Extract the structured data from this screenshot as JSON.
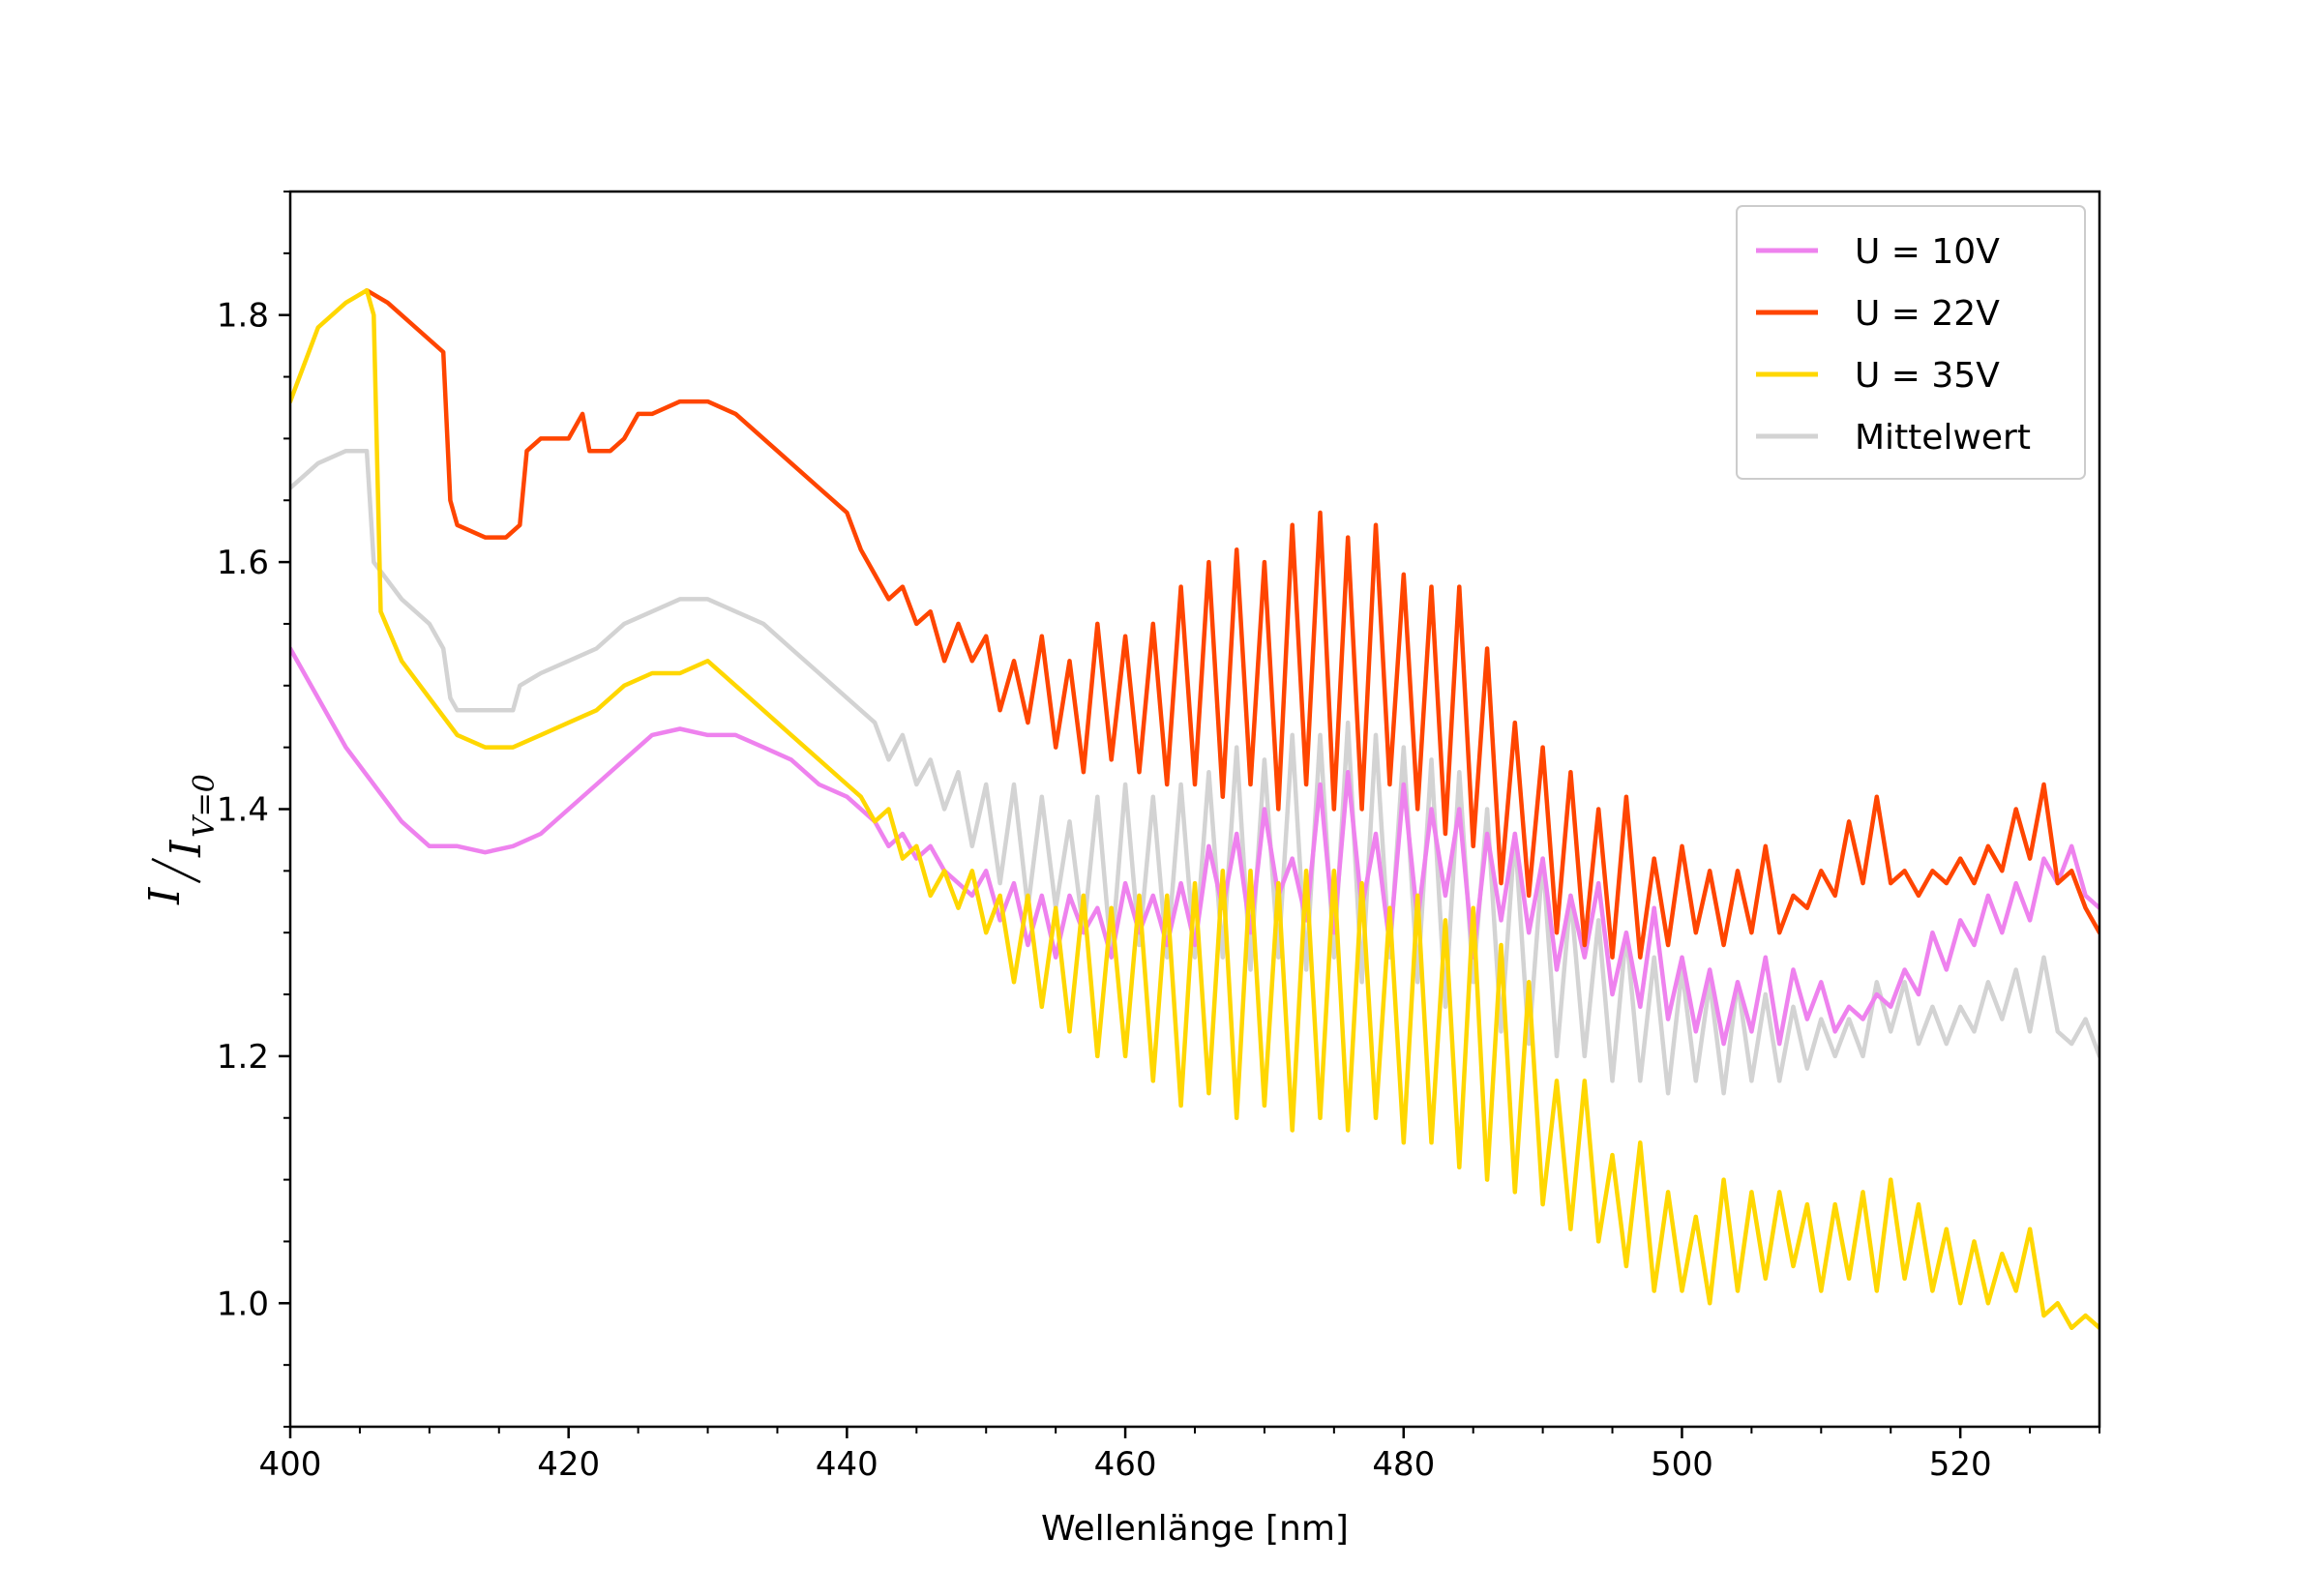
{
  "chart_data": {
    "type": "line",
    "xlabel": "Wellenlänge [nm]",
    "ylabel": {
      "numerator": "I",
      "denominator_base": "I",
      "denominator_sub": "V=0"
    },
    "xlim": [
      400,
      530
    ],
    "ylim": [
      0.9,
      1.9
    ],
    "xticks": [
      400,
      420,
      440,
      460,
      480,
      500,
      520
    ],
    "yticks": [
      1.0,
      1.2,
      1.4,
      1.6,
      1.8
    ],
    "xtick_labels": [
      "400",
      "420",
      "440",
      "460",
      "480",
      "500",
      "520"
    ],
    "ytick_labels": [
      "1.0",
      "1.2",
      "1.4",
      "1.6",
      "1.8"
    ],
    "grid": false,
    "legend_position": "top-right",
    "series": [
      {
        "name": "U = 10V",
        "color": "#ee82ee",
        "x": [
          400,
          402,
          404,
          406,
          408,
          410,
          412,
          414,
          416,
          418,
          420,
          422,
          424,
          426,
          428,
          430,
          432,
          434,
          436,
          438,
          440,
          441,
          442,
          443,
          444,
          445,
          446,
          447,
          448,
          449,
          450,
          451,
          452,
          453,
          454,
          455,
          456,
          457,
          458,
          459,
          460,
          461,
          462,
          463,
          464,
          465,
          466,
          467,
          468,
          469,
          470,
          471,
          472,
          473,
          474,
          475,
          476,
          477,
          478,
          479,
          480,
          481,
          482,
          483,
          484,
          485,
          486,
          487,
          488,
          489,
          490,
          491,
          492,
          493,
          494,
          495,
          496,
          497,
          498,
          499,
          500,
          501,
          502,
          503,
          504,
          505,
          506,
          507,
          508,
          509,
          510,
          511,
          512,
          513,
          514,
          515,
          516,
          517,
          518,
          519,
          520,
          521,
          522,
          523,
          524,
          525,
          526,
          527,
          528,
          529,
          530
        ],
        "y": [
          1.53,
          1.49,
          1.45,
          1.42,
          1.39,
          1.37,
          1.37,
          1.365,
          1.37,
          1.38,
          1.4,
          1.42,
          1.44,
          1.46,
          1.465,
          1.46,
          1.46,
          1.45,
          1.44,
          1.42,
          1.41,
          1.4,
          1.39,
          1.37,
          1.38,
          1.36,
          1.37,
          1.35,
          1.34,
          1.33,
          1.35,
          1.31,
          1.34,
          1.29,
          1.33,
          1.28,
          1.33,
          1.3,
          1.32,
          1.28,
          1.34,
          1.3,
          1.33,
          1.29,
          1.34,
          1.29,
          1.37,
          1.32,
          1.38,
          1.3,
          1.4,
          1.33,
          1.36,
          1.31,
          1.42,
          1.3,
          1.43,
          1.32,
          1.38,
          1.29,
          1.42,
          1.31,
          1.4,
          1.33,
          1.4,
          1.28,
          1.38,
          1.31,
          1.38,
          1.3,
          1.36,
          1.27,
          1.33,
          1.28,
          1.34,
          1.25,
          1.3,
          1.24,
          1.32,
          1.23,
          1.28,
          1.22,
          1.27,
          1.21,
          1.26,
          1.22,
          1.28,
          1.21,
          1.27,
          1.23,
          1.26,
          1.22,
          1.24,
          1.23,
          1.25,
          1.24,
          1.27,
          1.25,
          1.3,
          1.27,
          1.31,
          1.29,
          1.33,
          1.3,
          1.34,
          1.31,
          1.36,
          1.34,
          1.37,
          1.33,
          1.32
        ]
      },
      {
        "name": "U = 22V",
        "color": "#ff4500",
        "x": [
          405.5,
          407,
          409,
          411,
          411.5,
          412,
          414,
          415.5,
          416.5,
          417,
          418,
          420,
          421,
          421.5,
          423,
          424,
          425,
          426,
          428,
          430,
          432,
          434,
          436,
          438,
          440,
          441,
          442,
          443,
          444,
          445,
          446,
          447,
          448,
          449,
          450,
          451,
          452,
          453,
          454,
          455,
          456,
          457,
          458,
          459,
          460,
          461,
          462,
          463,
          464,
          465,
          466,
          467,
          468,
          469,
          470,
          471,
          472,
          473,
          474,
          475,
          476,
          477,
          478,
          479,
          480,
          481,
          482,
          483,
          484,
          485,
          486,
          487,
          488,
          489,
          490,
          491,
          492,
          493,
          494,
          495,
          496,
          497,
          498,
          499,
          500,
          501,
          502,
          503,
          504,
          505,
          506,
          507,
          508,
          509,
          510,
          511,
          512,
          513,
          514,
          515,
          516,
          517,
          518,
          519,
          520,
          521,
          522,
          523,
          524,
          525,
          526,
          527,
          528,
          529,
          530
        ],
        "y": [
          1.82,
          1.81,
          1.79,
          1.77,
          1.65,
          1.63,
          1.62,
          1.62,
          1.63,
          1.69,
          1.7,
          1.7,
          1.72,
          1.69,
          1.69,
          1.7,
          1.72,
          1.72,
          1.73,
          1.73,
          1.72,
          1.7,
          1.68,
          1.66,
          1.64,
          1.61,
          1.59,
          1.57,
          1.58,
          1.55,
          1.56,
          1.52,
          1.55,
          1.52,
          1.54,
          1.48,
          1.52,
          1.47,
          1.54,
          1.45,
          1.52,
          1.43,
          1.55,
          1.44,
          1.54,
          1.43,
          1.55,
          1.42,
          1.58,
          1.42,
          1.6,
          1.41,
          1.61,
          1.42,
          1.6,
          1.4,
          1.63,
          1.42,
          1.64,
          1.4,
          1.62,
          1.4,
          1.63,
          1.42,
          1.59,
          1.4,
          1.58,
          1.38,
          1.58,
          1.37,
          1.53,
          1.34,
          1.47,
          1.33,
          1.45,
          1.3,
          1.43,
          1.29,
          1.4,
          1.28,
          1.41,
          1.28,
          1.36,
          1.29,
          1.37,
          1.3,
          1.35,
          1.29,
          1.35,
          1.3,
          1.37,
          1.3,
          1.33,
          1.32,
          1.35,
          1.33,
          1.39,
          1.34,
          1.41,
          1.34,
          1.35,
          1.33,
          1.35,
          1.34,
          1.36,
          1.34,
          1.37,
          1.35,
          1.4,
          1.36,
          1.42,
          1.34,
          1.35,
          1.32,
          1.3
        ]
      },
      {
        "name": "U = 35V",
        "color": "#ffd700",
        "x": [
          400,
          402,
          404,
          405.5,
          406,
          406.5,
          408,
          410,
          412,
          414,
          416,
          418,
          420,
          422,
          424,
          426,
          428,
          430,
          432,
          434,
          436,
          438,
          440,
          441,
          442,
          443,
          444,
          445,
          446,
          447,
          448,
          449,
          450,
          451,
          452,
          453,
          454,
          455,
          456,
          457,
          458,
          459,
          460,
          461,
          462,
          463,
          464,
          465,
          466,
          467,
          468,
          469,
          470,
          471,
          472,
          473,
          474,
          475,
          476,
          477,
          478,
          479,
          480,
          481,
          482,
          483,
          484,
          485,
          486,
          487,
          488,
          489,
          490,
          491,
          492,
          493,
          494,
          495,
          496,
          497,
          498,
          499,
          500,
          501,
          502,
          503,
          504,
          505,
          506,
          507,
          508,
          509,
          510,
          511,
          512,
          513,
          514,
          515,
          516,
          517,
          518,
          519,
          520,
          521,
          522,
          523,
          524,
          525,
          526,
          527,
          528,
          529,
          530
        ],
        "y": [
          1.73,
          1.79,
          1.81,
          1.82,
          1.8,
          1.56,
          1.52,
          1.49,
          1.46,
          1.45,
          1.45,
          1.46,
          1.47,
          1.48,
          1.5,
          1.51,
          1.51,
          1.52,
          1.5,
          1.48,
          1.46,
          1.44,
          1.42,
          1.41,
          1.39,
          1.4,
          1.36,
          1.37,
          1.33,
          1.35,
          1.32,
          1.35,
          1.3,
          1.33,
          1.26,
          1.33,
          1.24,
          1.32,
          1.22,
          1.33,
          1.2,
          1.32,
          1.2,
          1.33,
          1.18,
          1.33,
          1.16,
          1.34,
          1.17,
          1.35,
          1.15,
          1.35,
          1.16,
          1.34,
          1.14,
          1.35,
          1.15,
          1.35,
          1.14,
          1.34,
          1.15,
          1.32,
          1.13,
          1.33,
          1.13,
          1.31,
          1.11,
          1.32,
          1.1,
          1.29,
          1.09,
          1.26,
          1.08,
          1.18,
          1.06,
          1.18,
          1.05,
          1.12,
          1.03,
          1.13,
          1.01,
          1.09,
          1.01,
          1.07,
          1.0,
          1.1,
          1.01,
          1.09,
          1.02,
          1.09,
          1.03,
          1.08,
          1.01,
          1.08,
          1.02,
          1.09,
          1.01,
          1.1,
          1.02,
          1.08,
          1.01,
          1.06,
          1.0,
          1.05,
          1.0,
          1.04,
          1.01,
          1.06,
          0.99,
          1.0,
          0.98,
          0.99,
          0.98
        ]
      },
      {
        "name": "Mittelwert",
        "color": "#d3d3d3",
        "x": [
          400,
          402,
          404,
          405.5,
          406,
          408,
          410,
          411,
          411.5,
          412,
          414,
          416,
          416.5,
          418,
          420,
          422,
          424,
          426,
          428,
          430,
          432,
          434,
          436,
          438,
          440,
          441,
          442,
          443,
          444,
          445,
          446,
          447,
          448,
          449,
          450,
          451,
          452,
          453,
          454,
          455,
          456,
          457,
          458,
          459,
          460,
          461,
          462,
          463,
          464,
          465,
          466,
          467,
          468,
          469,
          470,
          471,
          472,
          473,
          474,
          475,
          476,
          477,
          478,
          479,
          480,
          481,
          482,
          483,
          484,
          485,
          486,
          487,
          488,
          489,
          490,
          491,
          492,
          493,
          494,
          495,
          496,
          497,
          498,
          499,
          500,
          501,
          502,
          503,
          504,
          505,
          506,
          507,
          508,
          509,
          510,
          511,
          512,
          513,
          514,
          515,
          516,
          517,
          518,
          519,
          520,
          521,
          522,
          523,
          524,
          525,
          526,
          527,
          528,
          529,
          530
        ],
        "y": [
          1.66,
          1.68,
          1.69,
          1.69,
          1.6,
          1.57,
          1.55,
          1.53,
          1.49,
          1.48,
          1.48,
          1.48,
          1.5,
          1.51,
          1.52,
          1.53,
          1.55,
          1.56,
          1.57,
          1.57,
          1.56,
          1.55,
          1.53,
          1.51,
          1.49,
          1.48,
          1.47,
          1.44,
          1.46,
          1.42,
          1.44,
          1.4,
          1.43,
          1.37,
          1.42,
          1.34,
          1.42,
          1.32,
          1.41,
          1.32,
          1.39,
          1.3,
          1.41,
          1.28,
          1.42,
          1.29,
          1.41,
          1.28,
          1.42,
          1.28,
          1.43,
          1.28,
          1.45,
          1.27,
          1.44,
          1.28,
          1.46,
          1.27,
          1.46,
          1.28,
          1.47,
          1.26,
          1.46,
          1.28,
          1.45,
          1.26,
          1.44,
          1.24,
          1.43,
          1.26,
          1.4,
          1.22,
          1.38,
          1.21,
          1.36,
          1.2,
          1.33,
          1.2,
          1.31,
          1.18,
          1.3,
          1.18,
          1.28,
          1.17,
          1.27,
          1.18,
          1.26,
          1.17,
          1.26,
          1.18,
          1.25,
          1.18,
          1.24,
          1.19,
          1.23,
          1.2,
          1.23,
          1.2,
          1.26,
          1.22,
          1.26,
          1.21,
          1.24,
          1.21,
          1.24,
          1.22,
          1.26,
          1.23,
          1.27,
          1.22,
          1.28,
          1.22,
          1.21,
          1.23,
          1.2
        ]
      }
    ]
  }
}
